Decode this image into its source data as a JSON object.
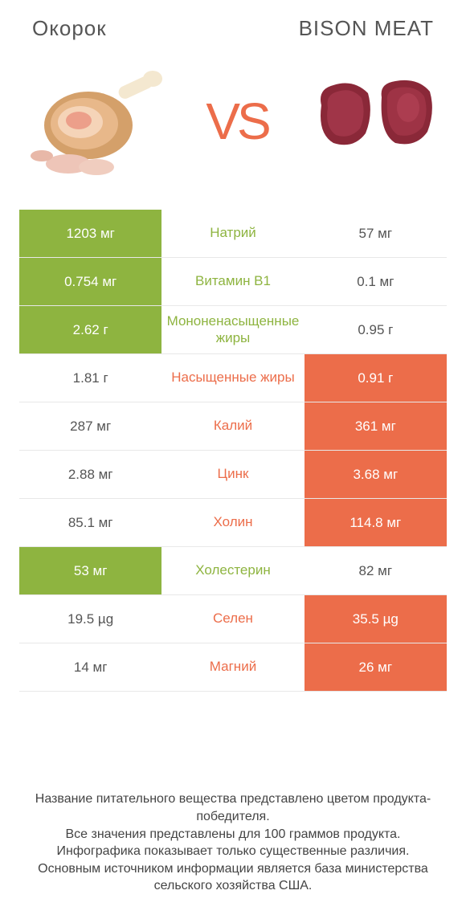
{
  "colors": {
    "left_bg": "#8eb440",
    "right_bg": "#ec6d4a",
    "left_text": "#8eb440",
    "right_text": "#ec6d4a",
    "row_border": "#e8e8e8",
    "vs_color": "#ec6d4a"
  },
  "header": {
    "left_title": "Окорок",
    "right_title": "BISON MEAT",
    "vs": "VS"
  },
  "table": {
    "type": "comparison-table",
    "rows": [
      {
        "left": "1203 мг",
        "label": "Натрий",
        "right": "57 мг",
        "winner": "left"
      },
      {
        "left": "0.754 мг",
        "label": "Витамин B1",
        "right": "0.1 мг",
        "winner": "left"
      },
      {
        "left": "2.62 г",
        "label": "Мононенасыщенные жиры",
        "right": "0.95 г",
        "winner": "left"
      },
      {
        "left": "1.81 г",
        "label": "Насыщенные жиры",
        "right": "0.91 г",
        "winner": "right"
      },
      {
        "left": "287 мг",
        "label": "Калий",
        "right": "361 мг",
        "winner": "right"
      },
      {
        "left": "2.88 мг",
        "label": "Цинк",
        "right": "3.68 мг",
        "winner": "right"
      },
      {
        "left": "85.1 мг",
        "label": "Холин",
        "right": "114.8 мг",
        "winner": "right"
      },
      {
        "left": "53 мг",
        "label": "Холестерин",
        "right": "82 мг",
        "winner": "left"
      },
      {
        "left": "19.5 µg",
        "label": "Селен",
        "right": "35.5 µg",
        "winner": "right"
      },
      {
        "left": "14 мг",
        "label": "Магний",
        "right": "26 мг",
        "winner": "right"
      }
    ]
  },
  "footer": {
    "line1": "Название питательного вещества представлено цветом продукта-победителя.",
    "line2": "Все значения представлены для 100 граммов продукта.",
    "line3": "Инфографика показывает только существенные различия.",
    "line4": "Основным источником информации является база министерства сельского хозяйства США."
  }
}
